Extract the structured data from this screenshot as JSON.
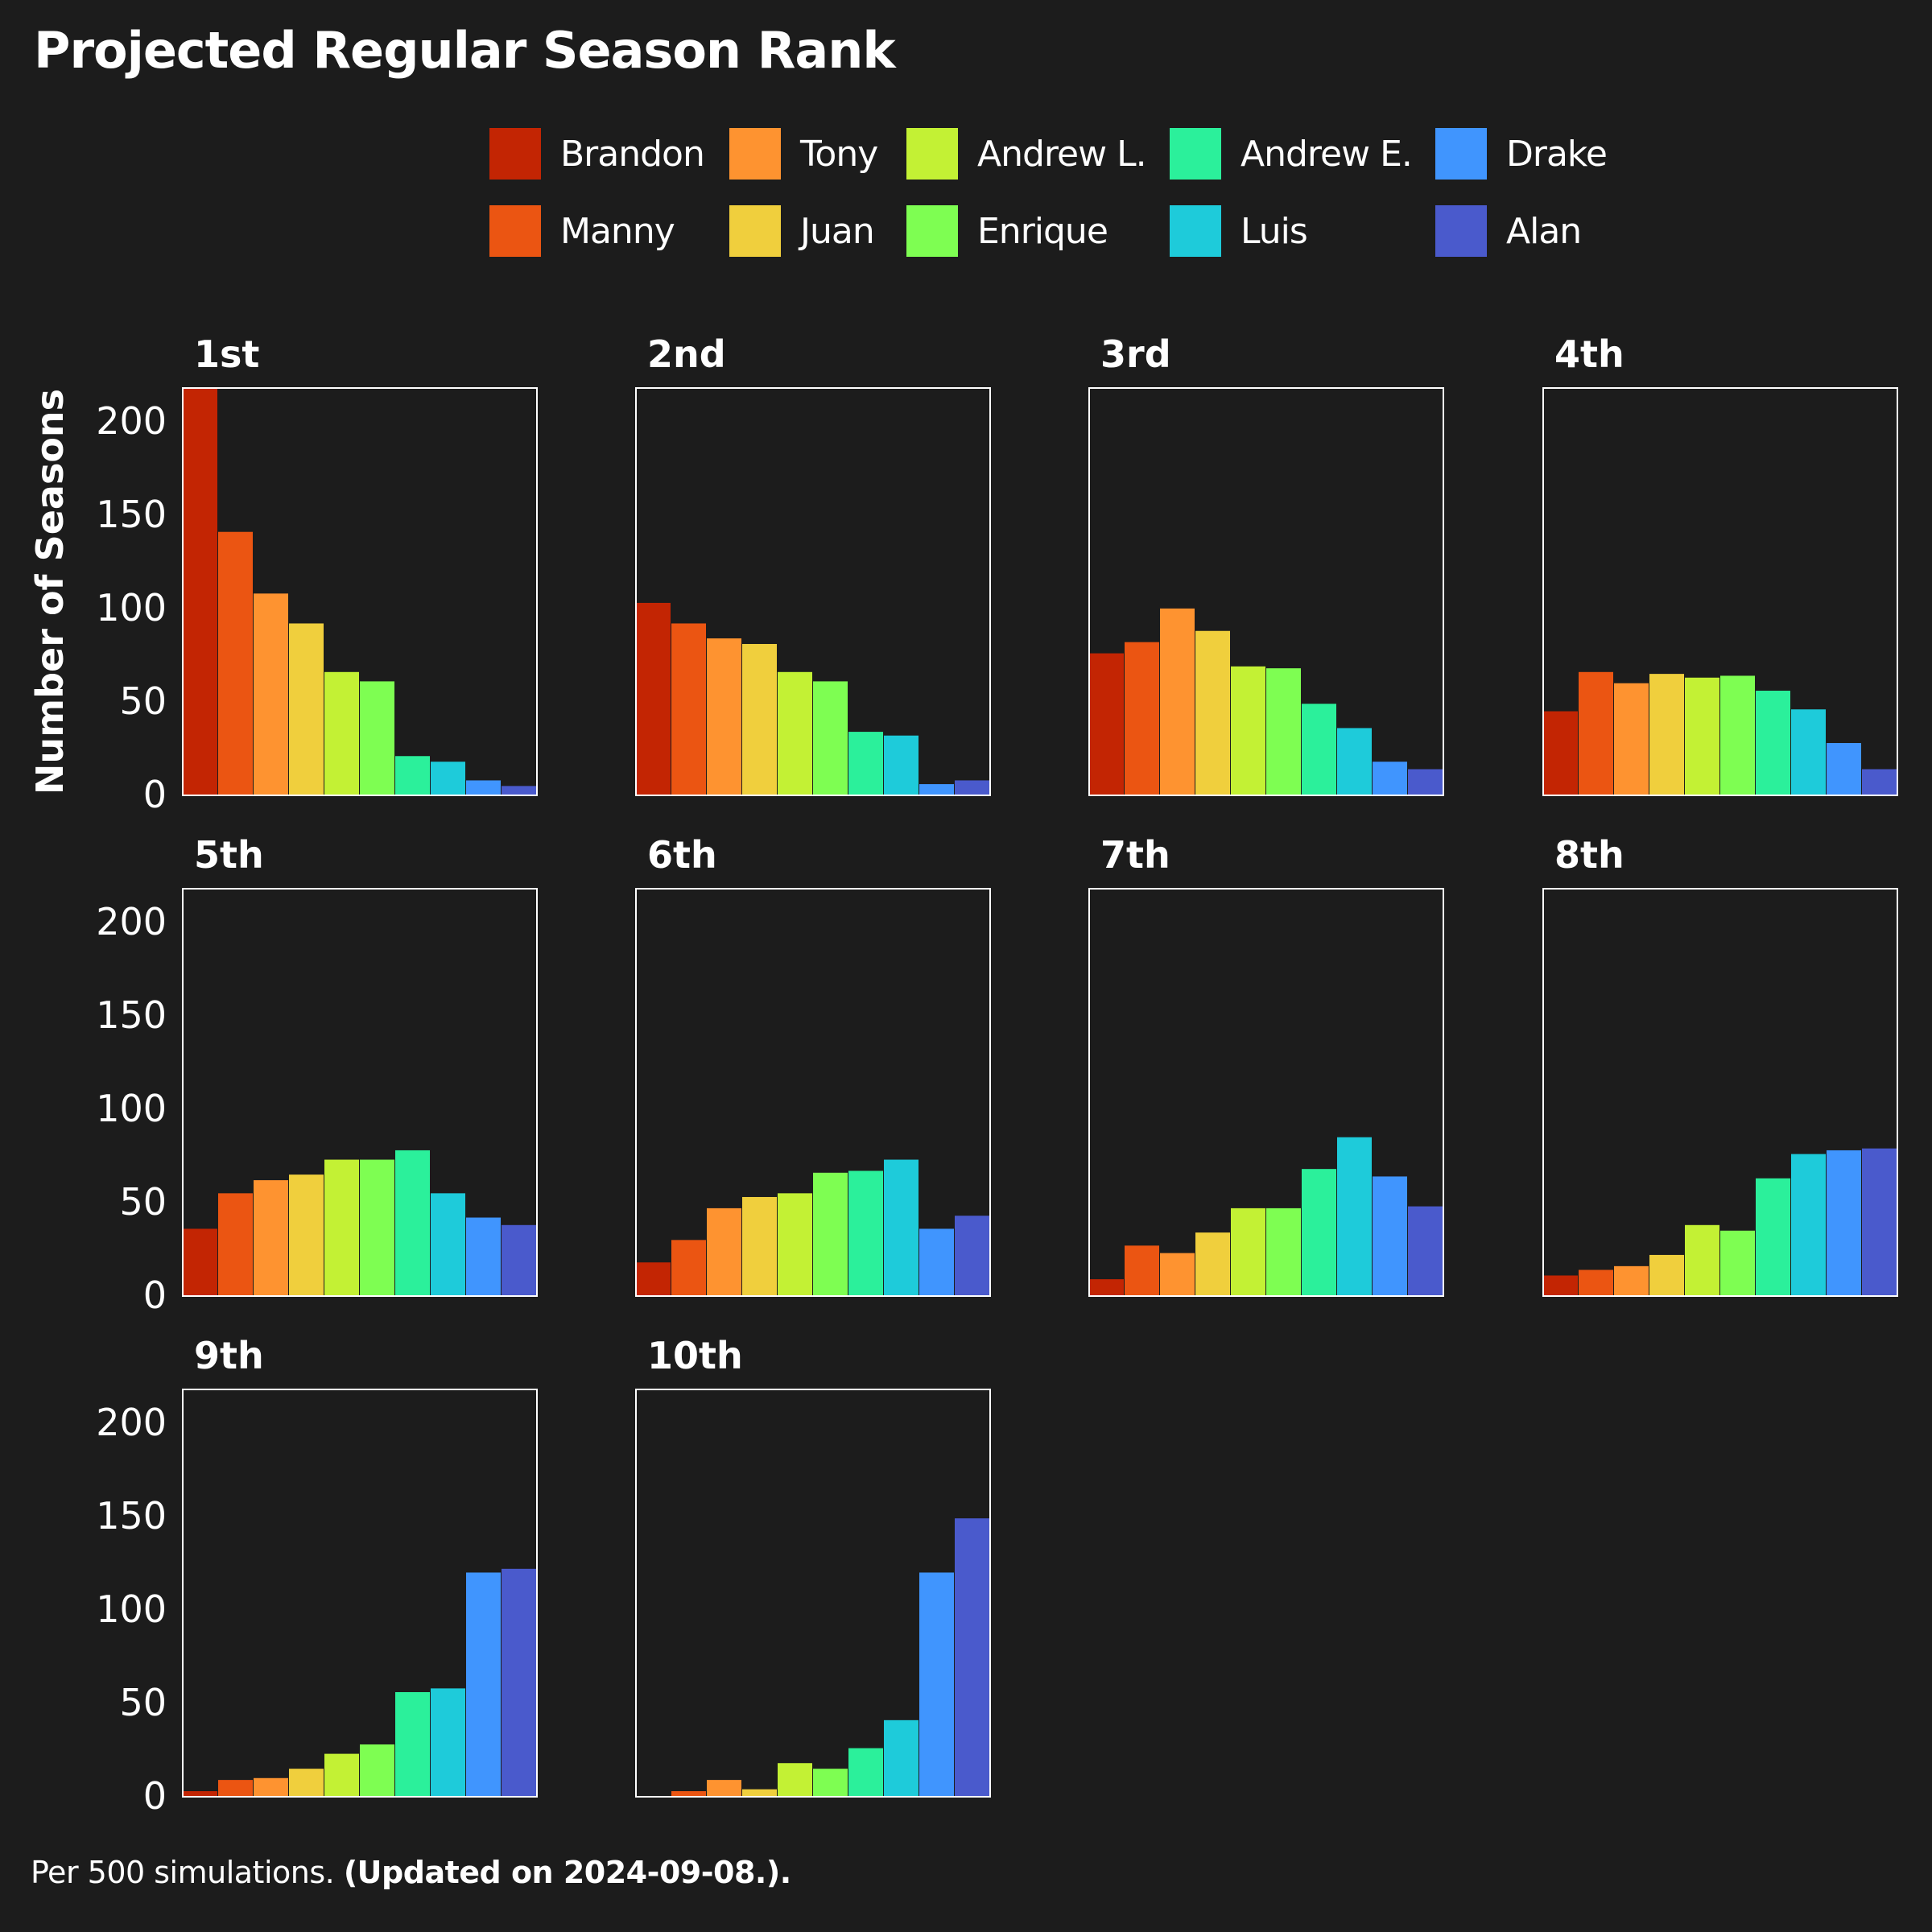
{
  "title": "Projected Regular Season Rank",
  "legend": [
    {
      "name": "Brandon",
      "color": "#c32503"
    },
    {
      "name": "Manny",
      "color": "#eb5512"
    },
    {
      "name": "Tony",
      "color": "#fe9330"
    },
    {
      "name": "Juan",
      "color": "#f0cf3d"
    },
    {
      "name": "Andrew L.",
      "color": "#c3f134"
    },
    {
      "name": "Enrique",
      "color": "#7efe52"
    },
    {
      "name": "Andrew E.",
      "color": "#2bf09b"
    },
    {
      "name": "Luis",
      "color": "#1ecbda"
    },
    {
      "name": "Drake",
      "color": "#4095fe"
    },
    {
      "name": "Alan",
      "color": "#4a5acc"
    }
  ],
  "footer": {
    "note": "Per 500 simulations.",
    "updated": "(Updated on 2024-09-08.)."
  },
  "chart_data": {
    "type": "bar",
    "ylabel": "Number of Seasons",
    "ylim": [
      0,
      218
    ],
    "yticks": [
      0,
      50,
      100,
      150,
      200
    ],
    "categories": [
      "Brandon",
      "Manny",
      "Tony",
      "Juan",
      "Andrew L.",
      "Enrique",
      "Andrew E.",
      "Luis",
      "Drake",
      "Alan"
    ],
    "panels": [
      {
        "title": "1st",
        "values": [
          218,
          141,
          108,
          92,
          66,
          61,
          21,
          18,
          8,
          5
        ]
      },
      {
        "title": "2nd",
        "values": [
          103,
          92,
          84,
          81,
          66,
          61,
          34,
          32,
          6,
          8
        ]
      },
      {
        "title": "3rd",
        "values": [
          76,
          82,
          100,
          88,
          69,
          68,
          49,
          36,
          18,
          14
        ]
      },
      {
        "title": "4th",
        "values": [
          45,
          66,
          60,
          65,
          63,
          64,
          56,
          46,
          28,
          14
        ]
      },
      {
        "title": "5th",
        "values": [
          36,
          55,
          62,
          65,
          73,
          73,
          78,
          55,
          42,
          38
        ]
      },
      {
        "title": "6th",
        "values": [
          18,
          30,
          47,
          53,
          55,
          66,
          67,
          73,
          36,
          43
        ]
      },
      {
        "title": "7th",
        "values": [
          9,
          27,
          23,
          34,
          47,
          47,
          68,
          85,
          64,
          48
        ]
      },
      {
        "title": "8th",
        "values": [
          11,
          14,
          16,
          22,
          38,
          35,
          63,
          76,
          78,
          79
        ]
      },
      {
        "title": "9th",
        "values": [
          3,
          9,
          10,
          15,
          23,
          28,
          56,
          58,
          120,
          122
        ]
      },
      {
        "title": "10th",
        "values": [
          0,
          3,
          9,
          4,
          18,
          15,
          26,
          41,
          120,
          149
        ]
      }
    ]
  }
}
